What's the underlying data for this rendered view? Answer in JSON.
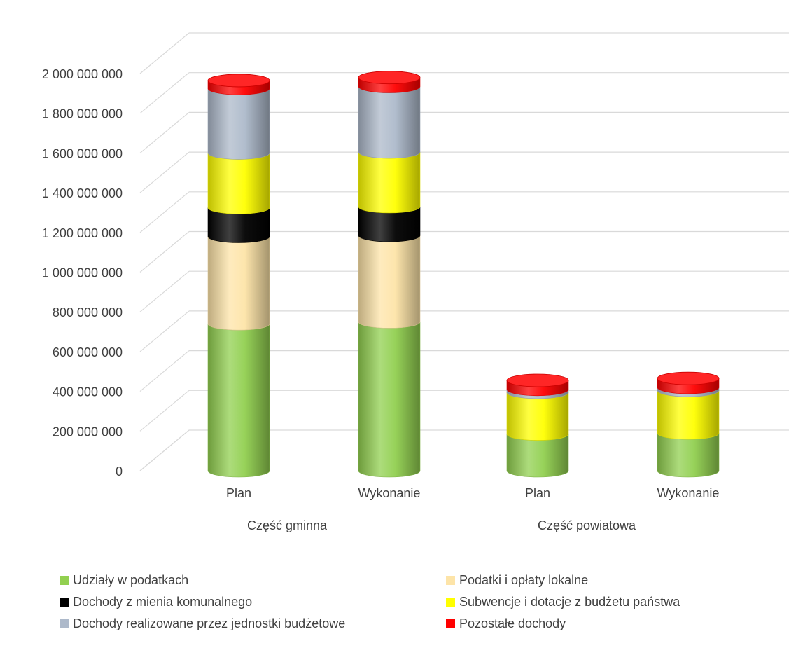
{
  "chart_data": {
    "type": "bar",
    "stacked": true,
    "style": "3d-cylinder",
    "groups": [
      "Część gminna",
      "Część powiatowa"
    ],
    "categories": [
      "Plan",
      "Wykonanie",
      "Plan",
      "Wykonanie"
    ],
    "category_groups": [
      0,
      0,
      1,
      1
    ],
    "ylim": [
      0,
      2000000000
    ],
    "yticks": [
      "0",
      "200 000 000",
      "400 000 000",
      "600 000 000",
      "800 000 000",
      "1 000 000 000",
      "1 200 000 000",
      "1 400 000 000",
      "1 600 000 000",
      "1 800 000 000",
      "2 000 000 000"
    ],
    "grid": true,
    "legend_position": "bottom",
    "series": [
      {
        "name": "Udziały w podatkach",
        "color": "#92d050",
        "values": [
          740000000,
          750000000,
          185000000,
          190000000
        ]
      },
      {
        "name": "Podatki i opłaty lokalne",
        "color": "#fde4a8",
        "values": [
          440000000,
          435000000,
          0,
          0
        ]
      },
      {
        "name": "Dochody z mienia komunalnego",
        "color": "#000000",
        "values": [
          145000000,
          145000000,
          0,
          0
        ]
      },
      {
        "name": "Subwencje i dotacje z budżetu państwa",
        "color": "#ffff00",
        "values": [
          275000000,
          275000000,
          210000000,
          215000000
        ]
      },
      {
        "name": "Dochody realizowane przez jednostki budżetowe",
        "color": "#adb9ca",
        "values": [
          325000000,
          330000000,
          15000000,
          15000000
        ]
      },
      {
        "name": "Pozostałe dochody",
        "color": "#ff0000",
        "values": [
          40000000,
          45000000,
          45000000,
          45000000
        ]
      }
    ]
  }
}
